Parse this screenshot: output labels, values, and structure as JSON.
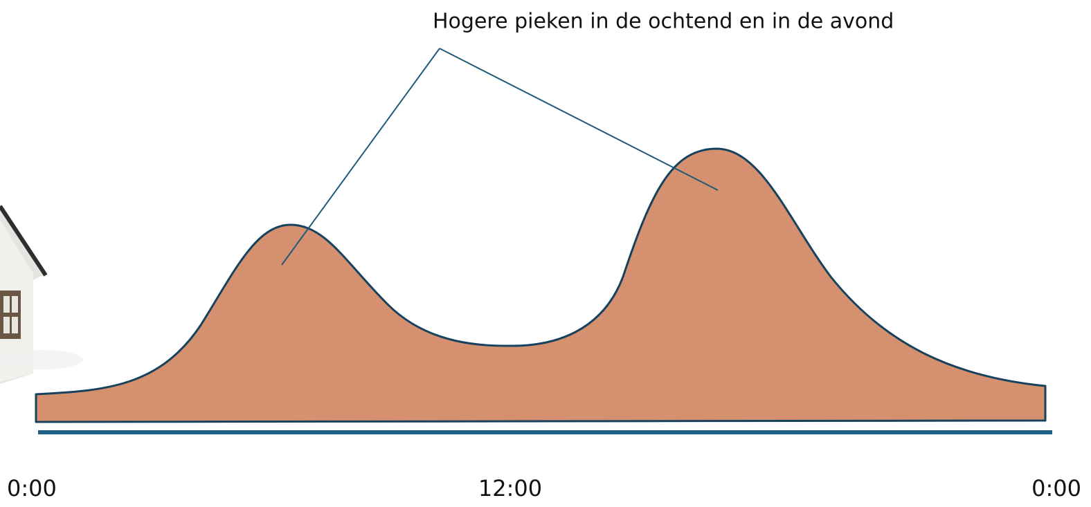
{
  "annotation": "Hogere pieken in de ochtend en in de avond",
  "axis_labels": [
    "0:00",
    "12:00",
    "0:00"
  ]
}
